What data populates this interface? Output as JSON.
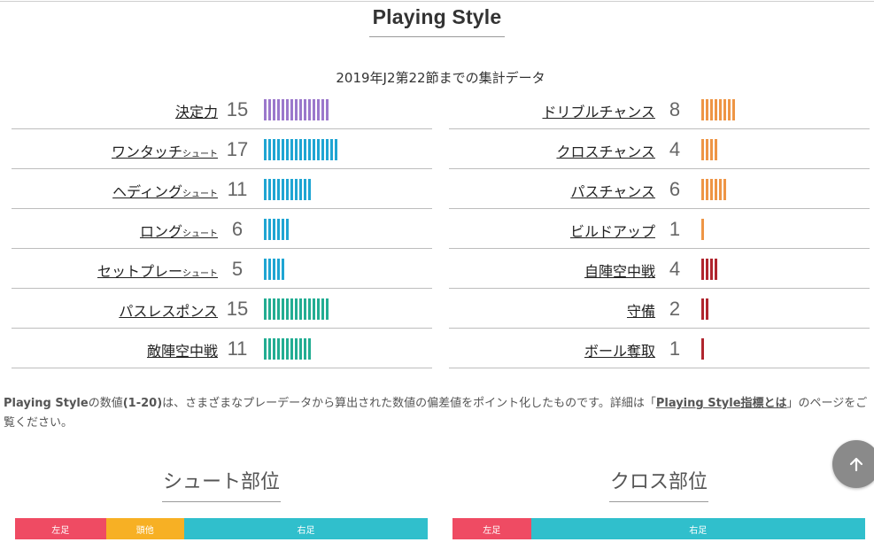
{
  "section_title": "Playing Style",
  "subtitle": "2019年J2第22節までの集計データ",
  "colors": {
    "purple": "#9b78cc",
    "blue": "#1fa5d3",
    "teal": "#22ad92",
    "orange": "#ee9545",
    "red": "#b0252e",
    "part_left": "#ef4b63",
    "part_head": "#f7b024",
    "part_right": "#30bfcc"
  },
  "left_stats": [
    {
      "label": "決定力",
      "label_small": "",
      "value": "15",
      "score": 15,
      "color": "#9b78cc"
    },
    {
      "label": "ワンタッチ",
      "label_small": "シュート",
      "value": "17",
      "score": 17,
      "color": "#1fa5d3"
    },
    {
      "label": "ヘディング",
      "label_small": "シュート",
      "value": "11",
      "score": 11,
      "color": "#1fa5d3"
    },
    {
      "label": "ロング",
      "label_small": "シュート",
      "value": "6",
      "score": 6,
      "color": "#1fa5d3"
    },
    {
      "label": "セットプレー",
      "label_small": "シュート",
      "value": "5",
      "score": 5,
      "color": "#1fa5d3"
    },
    {
      "label": "パスレスポンス",
      "label_small": "",
      "value": "15",
      "score": 15,
      "color": "#22ad92"
    },
    {
      "label": "敵陣空中戦",
      "label_small": "",
      "value": "11",
      "score": 11,
      "color": "#22ad92"
    }
  ],
  "right_stats": [
    {
      "label": "ドリブルチャンス",
      "label_small": "",
      "value": "8",
      "score": 8,
      "color": "#ee9545"
    },
    {
      "label": "クロスチャンス",
      "label_small": "",
      "value": "4",
      "score": 4,
      "color": "#ee9545"
    },
    {
      "label": "パスチャンス",
      "label_small": "",
      "value": "6",
      "score": 6,
      "color": "#ee9545"
    },
    {
      "label": "ビルドアップ",
      "label_small": "",
      "value": "1",
      "score": 1,
      "color": "#ee9545"
    },
    {
      "label": "自陣空中戦",
      "label_small": "",
      "value": "4",
      "score": 4,
      "color": "#b0252e"
    },
    {
      "label": "守備",
      "label_small": "",
      "value": "2",
      "score": 2,
      "color": "#b0252e"
    },
    {
      "label": "ボール奪取",
      "label_small": "",
      "value": "1",
      "score": 1,
      "color": "#b0252e"
    }
  ],
  "note": {
    "lead": "Playing Style",
    "text1": "の数値",
    "range": "(1-20)",
    "text2": "は、さまざまなプレーデータから算出された数値の偏差値をポイント化したものです。詳細は「",
    "link": "Playing Style指標とは",
    "text3": "」のページをご覧ください。"
  },
  "scroll_top_icon": "arrow-up-icon",
  "shoot_part": {
    "title": "シュート部位",
    "segments": [
      {
        "label": "左足",
        "share": 22,
        "color": "#ef4b63"
      },
      {
        "label": "頭他",
        "share": 19,
        "color": "#f7b024"
      },
      {
        "label": "右足",
        "share": 59,
        "color": "#30bfcc"
      }
    ]
  },
  "cross_part": {
    "title": "クロス部位",
    "segments": [
      {
        "label": "左足",
        "share": 19,
        "color": "#ef4b63"
      },
      {
        "label": "右足",
        "share": 81,
        "color": "#30bfcc"
      }
    ]
  }
}
